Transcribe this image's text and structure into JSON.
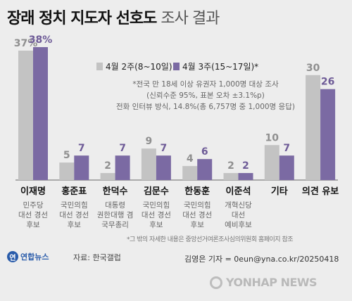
{
  "title": {
    "bold": "장래 정치 지도자 선호도",
    "light": "조사 결과"
  },
  "legend": {
    "items": [
      {
        "label": "4월 2주(8~10일)",
        "color": "#c3c3c3"
      },
      {
        "label": "4월 3주(15~17일)*",
        "color": "#7b6aa3"
      }
    ],
    "notes": [
      "*전국 만 18세 이상 유권자 1,000명 대상 조사",
      "(신뢰수준 95%, 표본 오차 ±3.1%p)",
      "전화 인터뷰 방식, 14.8%(총 6,757명 중 1,000명 응답)"
    ]
  },
  "chart_data": {
    "type": "bar",
    "categories": [
      "이재명",
      "홍준표",
      "한덕수",
      "김문수",
      "한동훈",
      "이준석",
      "기타",
      "의견 유보"
    ],
    "category_descriptions": [
      [
        "민주당",
        "대선 경선",
        "후보"
      ],
      [
        "국민의힘",
        "대선 경선",
        "후보"
      ],
      [
        "대통령",
        "권한대행 겸",
        "국무총리"
      ],
      [
        "국민의힘",
        "대선 경선",
        "후보"
      ],
      [
        "국민의힘",
        "대선 경선",
        "후보"
      ],
      [
        "개혁신당",
        "대선",
        "예비후보"
      ],
      [],
      []
    ],
    "series": [
      {
        "name": "4월 2주(8~10일)",
        "values": [
          37,
          5,
          2,
          9,
          4,
          2,
          10,
          30
        ],
        "labels": [
          "37%",
          "5",
          "2",
          "9",
          "4",
          "2",
          "10",
          "30"
        ],
        "color": "#c3c3c3"
      },
      {
        "name": "4월 3주(15~17일)*",
        "values": [
          38,
          7,
          7,
          7,
          6,
          2,
          7,
          26
        ],
        "labels": [
          "38%",
          "7",
          "7",
          "7",
          "6",
          "2",
          "7",
          "26"
        ],
        "color": "#7b6aa3"
      }
    ],
    "ylim": [
      0,
      38
    ],
    "grid": false,
    "legend_position": "top-center"
  },
  "footnote": "*그 밖의 자세한 내용은 중앙선거여론조사심의위원회 홈페이지 참조",
  "logo": {
    "mark": "연",
    "name": "연합뉴스"
  },
  "source": "자료: 한국갤럽",
  "credit": "김영은 기자 = 0eun@yna.co.kr/20250418",
  "watermark": "YONHAP NEWS"
}
